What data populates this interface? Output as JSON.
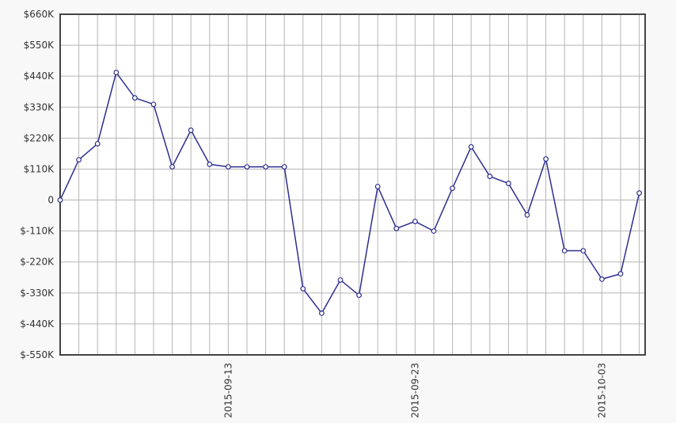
{
  "chart_data": {
    "type": "line",
    "categories": [
      null,
      null,
      null,
      null,
      null,
      null,
      null,
      null,
      null,
      "2015-09-13",
      null,
      null,
      null,
      null,
      null,
      null,
      null,
      null,
      null,
      "2015-09-23",
      null,
      null,
      null,
      null,
      null,
      null,
      null,
      null,
      null,
      "2015-10-03",
      null,
      null
    ],
    "series": [
      {
        "color": "#2e2e8f",
        "values": [
          0,
          143000,
          200000,
          453000,
          363000,
          340000,
          118000,
          248000,
          127000,
          118000,
          118000,
          118000,
          118000,
          -315000,
          -402000,
          -284000,
          -338000,
          48000,
          -101000,
          -76000,
          -110000,
          42000,
          189000,
          84000,
          59000,
          -53000,
          146000,
          -180000,
          -180000,
          -281000,
          -262000,
          25000
        ]
      }
    ],
    "ylim": [
      -550000,
      660000
    ],
    "yticks": [
      {
        "value": -550000,
        "label": "$-550K"
      },
      {
        "value": -440000,
        "label": "$-440K"
      },
      {
        "value": -330000,
        "label": "$-330K"
      },
      {
        "value": -220000,
        "label": "$-220K"
      },
      {
        "value": -110000,
        "label": "$-110K"
      },
      0,
      {
        "value": 110000,
        "label": "$110K"
      },
      {
        "value": 220000,
        "label": "$220K"
      },
      {
        "value": 330000,
        "label": "$330K"
      },
      {
        "value": 440000,
        "label": "$440K"
      },
      {
        "value": 550000,
        "label": "$550K"
      },
      {
        "value": 660000,
        "label": "$660K"
      }
    ],
    "grid": true
  }
}
